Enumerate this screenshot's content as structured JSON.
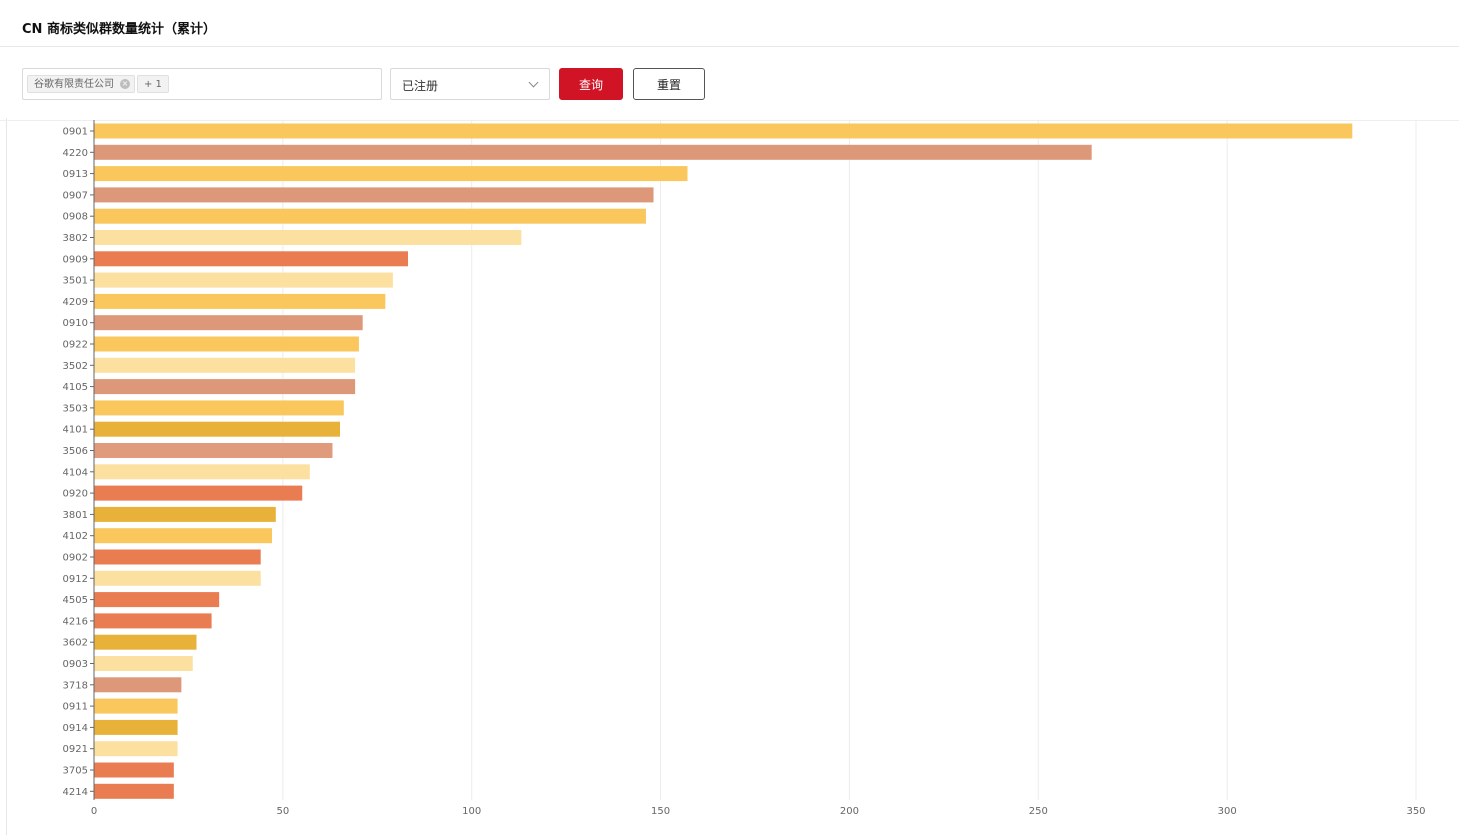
{
  "header": {
    "title": "CN 商标类似群数量统计（累计）"
  },
  "filters": {
    "company_tag": "谷歌有限责任公司",
    "company_tag_close": "×",
    "more_tag": "+ 1",
    "status_value": "已注册",
    "query_label": "查询",
    "reset_label": "重置"
  },
  "colors": {
    "accent_red": "#d01426",
    "bar_palette": [
      "#f9c75c",
      "#dc9878",
      "#fbe09f",
      "#e97c50",
      "#e8b23a",
      "#e09a7c"
    ]
  },
  "chart_data": {
    "type": "bar",
    "orientation": "horizontal",
    "title": "",
    "xlabel": "",
    "ylabel": "",
    "xlim": [
      0,
      350
    ],
    "xticks": [
      0,
      50,
      100,
      150,
      200,
      250,
      300,
      350
    ],
    "grid": true,
    "categories": [
      "0901",
      "4220",
      "0913",
      "0907",
      "0908",
      "3802",
      "0909",
      "3501",
      "4209",
      "0910",
      "0922",
      "3502",
      "4105",
      "3503",
      "4101",
      "3506",
      "4104",
      "0920",
      "3801",
      "4102",
      "0902",
      "0912",
      "4505",
      "4216",
      "3602",
      "0903",
      "3718",
      "0911",
      "0914",
      "0921",
      "3705",
      "4214"
    ],
    "values": [
      333,
      264,
      157,
      148,
      146,
      113,
      83,
      79,
      77,
      71,
      70,
      69,
      69,
      66,
      65,
      63,
      57,
      55,
      48,
      47,
      44,
      44,
      33,
      31,
      27,
      26,
      23,
      22,
      22,
      22,
      21,
      21
    ],
    "color_index": [
      0,
      1,
      0,
      1,
      0,
      2,
      3,
      2,
      0,
      1,
      0,
      2,
      1,
      0,
      4,
      5,
      2,
      3,
      4,
      0,
      3,
      2,
      3,
      3,
      4,
      2,
      1,
      0,
      4,
      2,
      3,
      3
    ]
  }
}
